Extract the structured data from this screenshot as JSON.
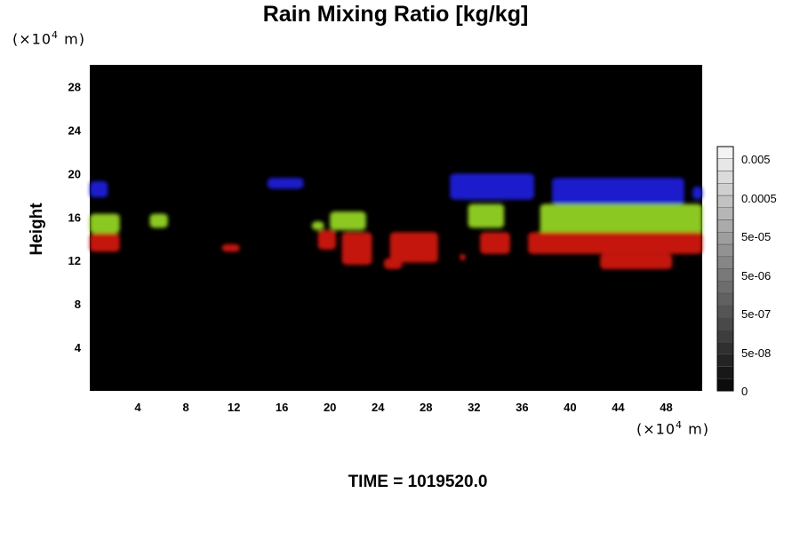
{
  "chart_data": {
    "type": "heatmap",
    "title": "Rain Mixing Ratio [kg/kg]",
    "ylabel": "Height",
    "xlabel": "",
    "x_unit": "(×10",
    "x_unit_exp": "4",
    "x_unit_tail": " m)",
    "y_unit": "(×10",
    "y_unit_exp": "4",
    "y_unit_tail": " m)",
    "xlim": [
      0,
      51
    ],
    "ylim": [
      0,
      30
    ],
    "x_ticks": [
      4,
      8,
      12,
      16,
      20,
      24,
      28,
      32,
      36,
      40,
      44,
      48
    ],
    "y_ticks": [
      4,
      8,
      12,
      16,
      20,
      24,
      28
    ],
    "background_color": "#000000",
    "colorbar": {
      "tick_labels": [
        "0.005",
        "0.0005",
        "5e-05",
        "5e-06",
        "5e-07",
        "5e-08",
        "0"
      ],
      "levels": 20
    },
    "regions": [
      {
        "name": "blue",
        "color": "#1a1acc",
        "x": [
          0.0,
          1.5
        ],
        "y": [
          17.8,
          19.3
        ]
      },
      {
        "name": "blue",
        "color": "#1a1acc",
        "x": [
          14.8,
          17.8
        ],
        "y": [
          18.6,
          19.6
        ]
      },
      {
        "name": "blue",
        "color": "#1a1acc",
        "x": [
          30.0,
          37.0
        ],
        "y": [
          17.6,
          20.0
        ]
      },
      {
        "name": "blue",
        "color": "#1a1acc",
        "x": [
          38.5,
          49.5
        ],
        "y": [
          17.2,
          19.6
        ]
      },
      {
        "name": "blue",
        "color": "#1a1acc",
        "x": [
          50.2,
          51.0
        ],
        "y": [
          17.6,
          18.8
        ]
      },
      {
        "name": "green",
        "color": "#8cc820",
        "x": [
          0.0,
          2.5
        ],
        "y": [
          14.5,
          16.3
        ]
      },
      {
        "name": "green",
        "color": "#8cc820",
        "x": [
          5.0,
          6.5
        ],
        "y": [
          15.0,
          16.3
        ]
      },
      {
        "name": "green",
        "color": "#8cc820",
        "x": [
          18.5,
          19.5
        ],
        "y": [
          14.8,
          15.6
        ]
      },
      {
        "name": "green",
        "color": "#8cc820",
        "x": [
          20.0,
          23.0
        ],
        "y": [
          14.8,
          16.5
        ]
      },
      {
        "name": "green",
        "color": "#8cc820",
        "x": [
          31.5,
          34.5
        ],
        "y": [
          15.0,
          17.2
        ]
      },
      {
        "name": "green",
        "color": "#8cc820",
        "x": [
          37.5,
          51.0
        ],
        "y": [
          14.4,
          17.2
        ]
      },
      {
        "name": "red",
        "color": "#c41410",
        "x": [
          0.0,
          2.5
        ],
        "y": [
          12.8,
          14.5
        ]
      },
      {
        "name": "red",
        "color": "#c41410",
        "x": [
          11.0,
          12.5
        ],
        "y": [
          12.8,
          13.5
        ]
      },
      {
        "name": "red",
        "color": "#c41410",
        "x": [
          19.0,
          20.5
        ],
        "y": [
          13.0,
          14.8
        ]
      },
      {
        "name": "red",
        "color": "#c41410",
        "x": [
          21.0,
          23.5
        ],
        "y": [
          11.6,
          14.6
        ]
      },
      {
        "name": "red",
        "color": "#c41410",
        "x": [
          25.0,
          29.0
        ],
        "y": [
          11.8,
          14.6
        ]
      },
      {
        "name": "red",
        "color": "#c41410",
        "x": [
          24.5,
          26.0
        ],
        "y": [
          11.2,
          12.2
        ]
      },
      {
        "name": "red",
        "color": "#c41410",
        "x": [
          30.8,
          31.3
        ],
        "y": [
          12.0,
          12.6
        ]
      },
      {
        "name": "red",
        "color": "#c41410",
        "x": [
          32.5,
          35.0
        ],
        "y": [
          12.6,
          14.6
        ]
      },
      {
        "name": "red",
        "color": "#c41410",
        "x": [
          36.5,
          51.0
        ],
        "y": [
          12.6,
          14.6
        ]
      },
      {
        "name": "red",
        "color": "#c41410",
        "x": [
          42.5,
          48.5
        ],
        "y": [
          11.2,
          12.6
        ]
      }
    ]
  },
  "footer": {
    "time_label": "TIME = 1019520.0"
  }
}
